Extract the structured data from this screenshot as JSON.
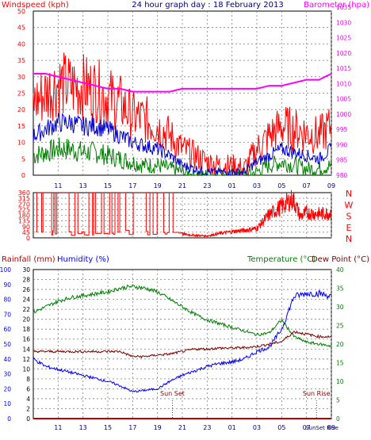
{
  "title": "24 hour graph day : 18 February 2013",
  "colors": {
    "frame": "#000000",
    "grid": "#7f7f7f",
    "wind_gust": "#ff0000",
    "wind_avg": "#0000cc",
    "wind_low": "#008000",
    "barometer": "#ff00ff",
    "direction": "#ff0000",
    "temperature": "#008000",
    "humidity": "#0000ff",
    "dewpoint": "#800000",
    "rainfall": "#c00000"
  },
  "x_ticks": [
    "11",
    "13",
    "15",
    "17",
    "19",
    "21",
    "23",
    "01",
    "03",
    "05",
    "07",
    "09"
  ],
  "chart_data": [
    {
      "type": "line",
      "name": "wind-barometer",
      "left_label": "Windspeed (kph)",
      "right_label": "Barometer (hpa)",
      "left_ticks": [
        "50",
        "45",
        "40",
        "35",
        "30",
        "25",
        "20",
        "15",
        "10",
        "5",
        "0"
      ],
      "right_ticks": [
        "1035",
        "1030",
        "1025",
        "1020",
        "1015",
        "1010",
        "1005",
        "1000",
        "995",
        "990",
        "985",
        "980"
      ],
      "x_hours": [
        9,
        10,
        11,
        12,
        13,
        14,
        15,
        16,
        17,
        18,
        19,
        20,
        21,
        22,
        23,
        24,
        25,
        26,
        27,
        28,
        29,
        30,
        31,
        32,
        33
      ],
      "gust": [
        22,
        25,
        28,
        27,
        27,
        26,
        24,
        22,
        18,
        17,
        15,
        12,
        8,
        6,
        4,
        3,
        3,
        2,
        8,
        12,
        15,
        14,
        13,
        12,
        15
      ],
      "average": [
        12,
        14,
        16,
        16,
        15,
        15,
        14,
        12,
        10,
        9,
        8,
        6,
        3,
        2,
        1,
        1,
        1,
        1,
        4,
        6,
        8,
        7,
        6,
        5,
        8
      ],
      "low": [
        6,
        7,
        8,
        8,
        7,
        7,
        6,
        5,
        4,
        3,
        3,
        2,
        1,
        0,
        0,
        0,
        0,
        0,
        1,
        3,
        4,
        3,
        2,
        2,
        3
      ],
      "barometer": [
        1014,
        1014,
        1013,
        1012,
        1011,
        1010,
        1009,
        1009,
        1008,
        1008,
        1008,
        1008,
        1009,
        1009,
        1009,
        1009,
        1009,
        1009,
        1009,
        1010,
        1010,
        1011,
        1012,
        1012,
        1014
      ],
      "left_range": [
        0,
        50
      ],
      "right_range": [
        980,
        1035
      ]
    },
    {
      "type": "line",
      "name": "wind-direction",
      "left_ticks": [
        "360",
        "315",
        "270",
        "225",
        "180",
        "135",
        "90",
        "45",
        "0"
      ],
      "right_labels": [
        "N",
        "W",
        "S",
        "E",
        "N"
      ],
      "x_hours": [
        21,
        22,
        23,
        24,
        25,
        26,
        27,
        28,
        29,
        29.8,
        30,
        30.5,
        31,
        32,
        33
      ],
      "direction": [
        30,
        20,
        15,
        35,
        50,
        60,
        75,
        185,
        250,
        305,
        290,
        170,
        200,
        190,
        200
      ],
      "range": [
        0,
        360
      ]
    },
    {
      "type": "line",
      "name": "temp-humidity",
      "label_rain": "Rainfall (mm)",
      "label_humidity": "Humidity (%)",
      "label_temperature": "Temperature (°C)",
      "label_dewpoint": "Dew Point (°C)",
      "rain_ticks": [
        "100",
        "90",
        "80",
        "70",
        "60",
        "50",
        "40",
        "30",
        "20",
        "10",
        "0"
      ],
      "temp_left_ticks": [
        "30",
        "28",
        "26",
        "24",
        "22",
        "20",
        "18",
        "16",
        "14",
        "12",
        "10",
        "8",
        "6",
        "4",
        "2",
        "0"
      ],
      "temp_right_ticks": [
        "40",
        "35",
        "30",
        "25",
        "20",
        "15",
        "10",
        "5",
        "0"
      ],
      "x_hours": [
        9,
        10,
        11,
        12,
        13,
        14,
        15,
        16,
        17,
        18,
        19,
        20,
        21,
        22,
        23,
        24,
        25,
        26,
        27,
        28,
        29,
        30,
        31,
        32,
        33
      ],
      "temperature": [
        28.5,
        30,
        31.5,
        32.5,
        33,
        33.5,
        34,
        35,
        35.5,
        35,
        34,
        32,
        30,
        28,
        26.5,
        25.5,
        24.5,
        23.5,
        22.5,
        23,
        26.5,
        22,
        20.5,
        20,
        19.5
      ],
      "humidity": [
        40,
        35,
        33,
        31,
        29,
        27,
        25,
        22,
        18,
        19,
        20,
        25,
        29,
        32,
        35,
        37,
        38,
        40,
        45,
        48,
        60,
        82,
        84,
        84,
        82
      ],
      "dewpoint": [
        13.5,
        13.5,
        13.5,
        13.5,
        13.5,
        13.5,
        13.5,
        13.5,
        12.5,
        12.5,
        12.8,
        13,
        13.5,
        14,
        14,
        14.2,
        14.2,
        14.3,
        14.5,
        15,
        15.5,
        17.5,
        17,
        16.5,
        16.5
      ],
      "rainfall": [
        0,
        0,
        0,
        0,
        0,
        0,
        0,
        0,
        0,
        0,
        0,
        0,
        0,
        0,
        0,
        0,
        0,
        0,
        0,
        0,
        0,
        0,
        0,
        0,
        0
      ],
      "temp_range": [
        0,
        40
      ],
      "humidity_range": [
        0,
        100
      ],
      "dewpoint_range": [
        0,
        30
      ],
      "annotations": [
        {
          "text": "Sun Set",
          "hour": 20.2
        },
        {
          "text": "Sun Rise",
          "hour": 31.8
        }
      ],
      "bottom_overlap": "SunSet Rise"
    }
  ]
}
